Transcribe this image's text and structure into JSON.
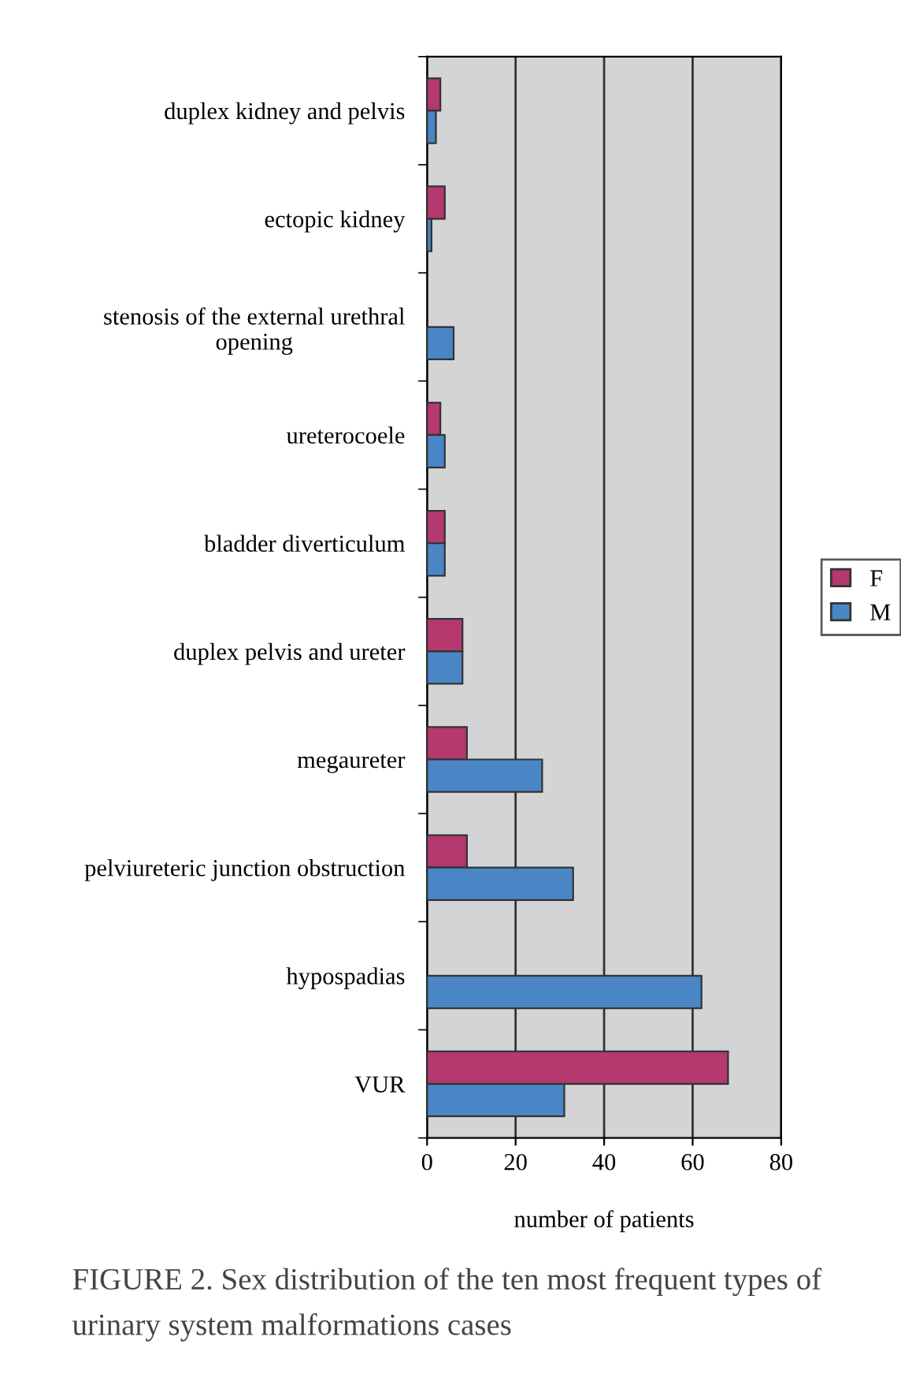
{
  "chart_data": {
    "type": "bar",
    "orientation": "horizontal",
    "xlabel": "number of patients",
    "categories": [
      "duplex kidney and pelvis",
      "ectopic kidney",
      "stenosis of the external urethral\nopening",
      "ureterocoele",
      "bladder diverticulum",
      "duplex pelvis and ureter",
      "megaureter",
      "pelviureteric junction obstruction",
      "hypospadias",
      "VUR"
    ],
    "series": [
      {
        "name": "F",
        "color": "#b5386f",
        "values": [
          3,
          4,
          0,
          3,
          4,
          8,
          9,
          9,
          0,
          68
        ]
      },
      {
        "name": "M",
        "color": "#4a86c5",
        "values": [
          2,
          1,
          6,
          4,
          4,
          8,
          26,
          33,
          62,
          31
        ]
      }
    ],
    "xlim": [
      0,
      80
    ],
    "xticks": [
      0,
      20,
      40,
      60,
      80
    ],
    "grid": "x",
    "legend": "right",
    "annotations": [
      "FIGURE 2. Sex distribution of the ten most frequent types of urinary system malformations cases"
    ]
  }
}
